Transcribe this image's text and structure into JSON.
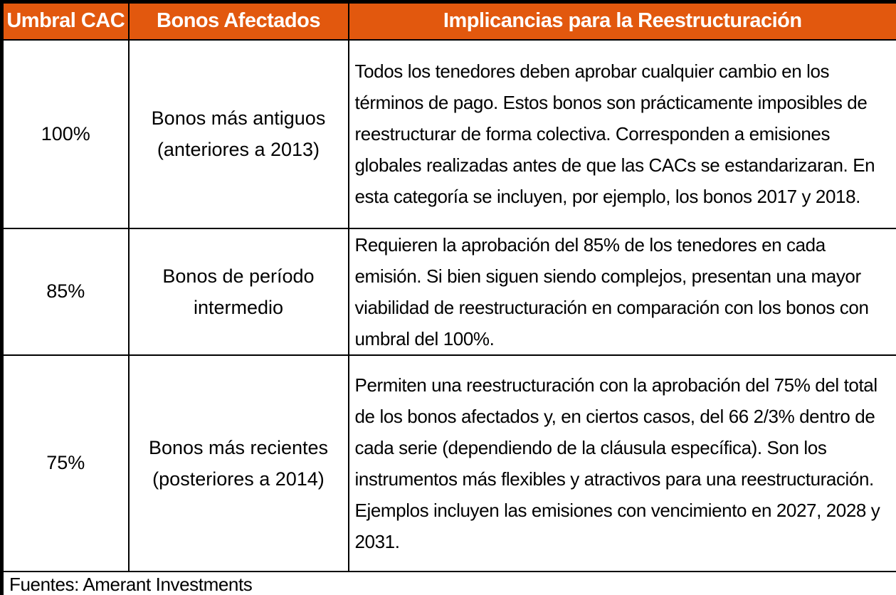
{
  "colors": {
    "header_bg": "#E2580E",
    "header_text": "#FFFFFF",
    "body_text": "#000000",
    "border": "#000000"
  },
  "table": {
    "headers": [
      "Umbral CAC",
      "Bonos Afectados",
      "Implicancias para la Reestructuración"
    ],
    "rows": [
      {
        "threshold": "100%",
        "bonds": "Bonos más antiguos (anteriores a 2013)",
        "implications": "Todos los tenedores deben aprobar cualquier cambio en los términos de pago. Estos bonos son prácticamente imposibles de reestructurar de forma colectiva. Corresponden a emisiones globales realizadas antes de que las CACs se estandarizaran. En esta categoría se incluyen, por ejemplo, los bonos 2017 y 2018."
      },
      {
        "threshold": "85%",
        "bonds": "Bonos de período intermedio",
        "implications": "Requieren la aprobación del 85% de los tenedores en cada emisión. Si bien siguen siendo complejos, presentan una mayor viabilidad de reestructuración en comparación con los bonos con umbral del 100%."
      },
      {
        "threshold": "75%",
        "bonds": "Bonos más recientes (posteriores a 2014)",
        "implications": "Permiten una reestructuración con la aprobación del 75% del total de los bonos afectados y, en ciertos casos, del 66 2/3% dentro de cada serie (dependiendo de la cláusula específica). Son los instrumentos más flexibles y atractivos para una reestructuración. Ejemplos incluyen las emisiones con vencimiento en 2027, 2028 y 2031."
      }
    ],
    "source_note": "Fuentes: Amerant Investments"
  }
}
